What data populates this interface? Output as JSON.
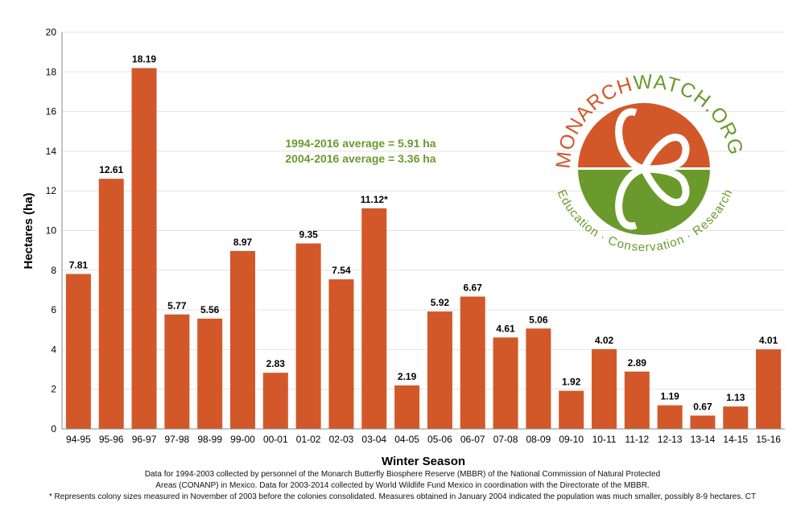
{
  "chart_data": {
    "type": "bar",
    "xlabel": "Winter Season",
    "ylabel": "Hectares (ha)",
    "ylim": [
      0,
      20
    ],
    "yticks": [
      0,
      2,
      4,
      6,
      8,
      10,
      12,
      14,
      16,
      18,
      20
    ],
    "grid": true,
    "categories": [
      "94-95",
      "95-96",
      "96-97",
      "97-98",
      "98-99",
      "99-00",
      "00-01",
      "01-02",
      "02-03",
      "03-04",
      "04-05",
      "05-06",
      "06-07",
      "07-08",
      "08-09",
      "09-10",
      "10-11",
      "11-12",
      "12-13",
      "13-14",
      "14-15",
      "15-16"
    ],
    "values": [
      7.81,
      12.61,
      18.19,
      5.77,
      5.56,
      8.97,
      2.83,
      9.35,
      7.54,
      11.12,
      2.19,
      5.92,
      6.67,
      4.61,
      5.06,
      1.92,
      4.02,
      2.89,
      1.19,
      0.67,
      1.13,
      4.01
    ],
    "data_labels": [
      "7.81",
      "12.61",
      "18.19",
      "5.77",
      "5.56",
      "8.97",
      "2.83",
      "9.35",
      "7.54",
      "11.12*",
      "2.19",
      "5.92",
      "6.67",
      "4.61",
      "5.06",
      "1.92",
      "4.02",
      "2.89",
      "1.19",
      "0.67",
      "1.13",
      "4.01"
    ],
    "annotations": [
      "1994-2016 average = 5.91 ha",
      "2004-2016 average = 3.36 ha"
    ],
    "bar_color": "#d2582a",
    "annotation_color": "#6a9a2c"
  },
  "logo": {
    "top_text_orange": "MONARCH",
    "top_text_green": "WATCH.ORG",
    "bottom_text": "Education · Conservation · Research"
  },
  "footnotes": [
    "Data for 1994-2003 collected by personnel of the Monarch Butterfly Biosphere Reserve (MBBR) of the National Commission of Natural Protected",
    "Areas (CONANP) in Mexico. Data for 2003-2014 collected by World Wildlife Fund Mexico in coordination with the Directorate of the MBBR.",
    "* Represents colony sizes measured in November of 2003 before the colonies consolidated. Measures obtained in January 2004 indicated the population was much smaller, possibly 8-9 hectares. CT"
  ]
}
